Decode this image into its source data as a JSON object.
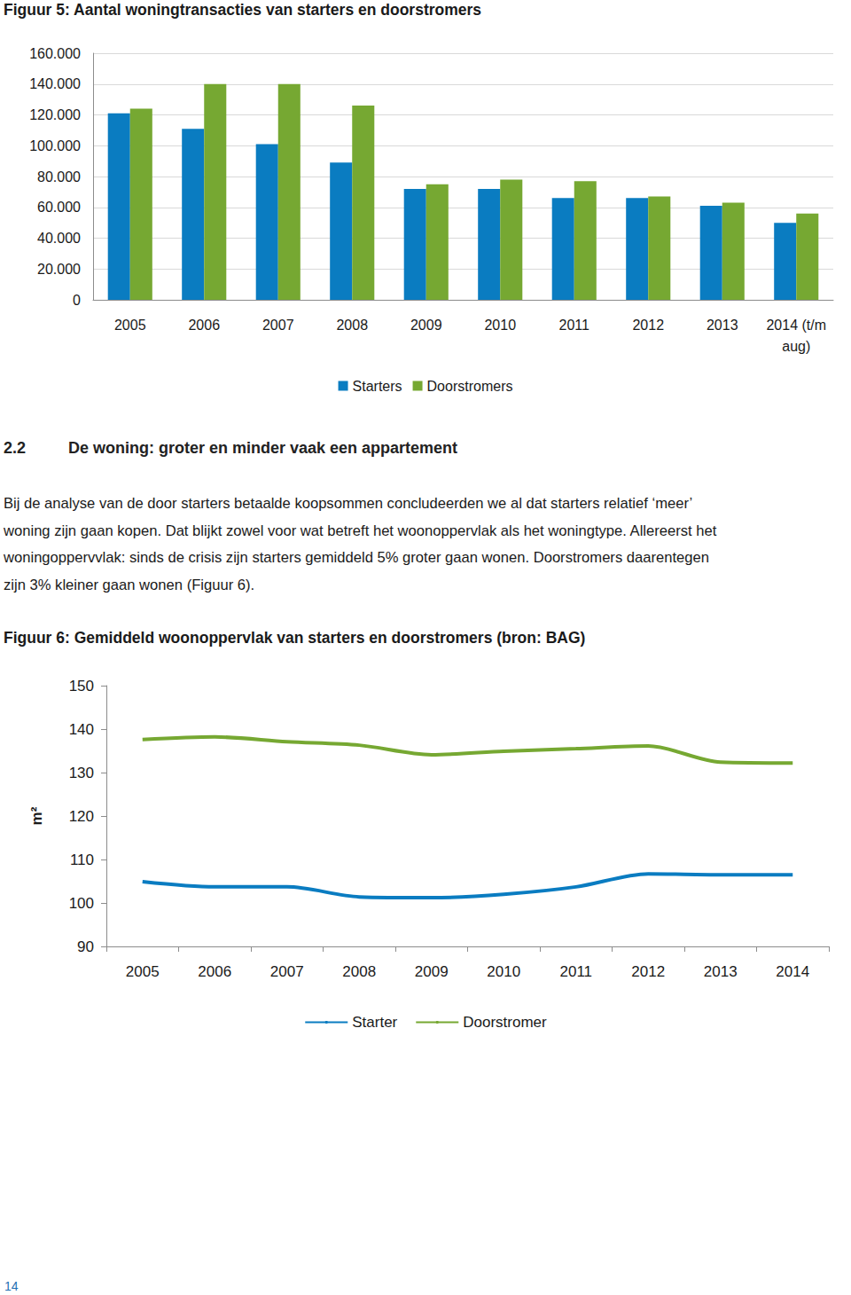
{
  "chart_data": [
    {
      "type": "bar",
      "title": "Figuur 5: Aantal woningtransacties van starters en doorstromers",
      "categories": [
        "2005",
        "2006",
        "2007",
        "2008",
        "2009",
        "2010",
        "2011",
        "2012",
        "2013",
        "2014 (t/m\naug)"
      ],
      "series": [
        {
          "name": "Starters",
          "color": "#0a7cc1",
          "values": [
            121000,
            111000,
            101000,
            89000,
            72000,
            72000,
            66000,
            66000,
            61000,
            50000
          ]
        },
        {
          "name": "Doorstromers",
          "color": "#76a832",
          "values": [
            124000,
            140000,
            140000,
            126000,
            75000,
            78000,
            77000,
            67000,
            63000,
            56000
          ]
        }
      ],
      "ylim": [
        0,
        160000
      ],
      "yticks": [
        0,
        {
          "value": 20000,
          "label": "20.000"
        },
        {
          "value": 40000,
          "label": "40.000"
        },
        {
          "value": 60000,
          "label": "60.000"
        },
        {
          "value": 80000,
          "label": "80.000"
        },
        {
          "value": 100000,
          "label": "100.000"
        },
        {
          "value": 120000,
          "label": "120.000"
        },
        {
          "value": 140000,
          "label": "140.000"
        },
        {
          "value": 160000,
          "label": "160.000"
        }
      ],
      "grid": true,
      "legend": "bottom"
    },
    {
      "type": "line",
      "title": "Figuur 6: Gemiddeld woonoppervlak van starters en doorstromers (bron: BAG)",
      "y_label": "m²",
      "categories": [
        "2005",
        "2006",
        "2007",
        "2008",
        "2009",
        "2010",
        "2011",
        "2012",
        "2013",
        "2014"
      ],
      "series": [
        {
          "name": "Starter",
          "color": "#0a7cc1",
          "values": [
            104.9,
            103.7,
            103.7,
            101.4,
            101.2,
            102.0,
            103.7,
            106.7,
            106.5,
            106.5
          ]
        },
        {
          "name": "Doorstromer",
          "color": "#76a832",
          "values": [
            137.6,
            138.2,
            137.1,
            136.3,
            134.1,
            134.9,
            135.5,
            136.1,
            132.4,
            132.2
          ]
        }
      ],
      "ylim": [
        90,
        150
      ],
      "yticks": [
        90,
        100,
        110,
        120,
        130,
        140,
        150
      ],
      "grid": false,
      "legend": "bottom"
    }
  ],
  "heading": {
    "number": "2.2",
    "title": "De woning: groter en minder vaak een appartement"
  },
  "paragraph": [
    "Bij de analyse van de door starters betaalde koopsommen concludeerden we al dat starters relatief ‘meer’",
    "woning zijn gaan kopen. Dat blijkt zowel voor wat betreft het woonoppervlak als het woningtype. Allereerst het",
    "woningoppervvlak: sinds de crisis zijn starters gemiddeld 5% groter gaan wonen. Doorstromers daarentegen",
    "zijn 3% kleiner gaan wonen (Figuur 6)."
  ],
  "page_number": "14"
}
